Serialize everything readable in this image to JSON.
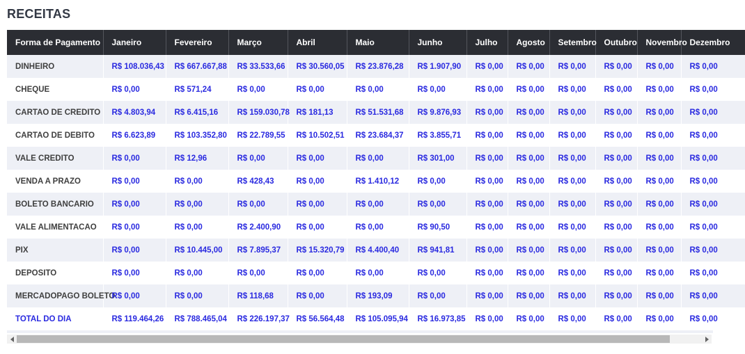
{
  "page": {
    "title": "RECEITAS"
  },
  "table": {
    "columns": [
      "Forma de Pagamento",
      "Janeiro",
      "Fevereiro",
      "Março",
      "Abril",
      "Maio",
      "Junho",
      "Julho",
      "Agosto",
      "Setembro",
      "Outubro",
      "Novembro",
      "Dezembro"
    ],
    "rows": [
      {
        "label": "DINHEIRO",
        "values": [
          "R$ 108.036,43",
          "R$ 667.667,88",
          "R$ 33.533,66",
          "R$ 30.560,05",
          "R$ 23.876,28",
          "R$ 1.907,90",
          "R$ 0,00",
          "R$ 0,00",
          "R$ 0,00",
          "R$ 0,00",
          "R$ 0,00",
          "R$ 0,00"
        ]
      },
      {
        "label": "CHEQUE",
        "values": [
          "R$ 0,00",
          "R$ 571,24",
          "R$ 0,00",
          "R$ 0,00",
          "R$ 0,00",
          "R$ 0,00",
          "R$ 0,00",
          "R$ 0,00",
          "R$ 0,00",
          "R$ 0,00",
          "R$ 0,00",
          "R$ 0,00"
        ]
      },
      {
        "label": "CARTAO DE CREDITO",
        "values": [
          "R$ 4.803,94",
          "R$ 6.415,16",
          "R$ 159.030,78",
          "R$ 181,13",
          "R$ 51.531,68",
          "R$ 9.876,93",
          "R$ 0,00",
          "R$ 0,00",
          "R$ 0,00",
          "R$ 0,00",
          "R$ 0,00",
          "R$ 0,00"
        ]
      },
      {
        "label": "CARTAO DE DEBITO",
        "values": [
          "R$ 6.623,89",
          "R$ 103.352,80",
          "R$ 22.789,55",
          "R$ 10.502,51",
          "R$ 23.684,37",
          "R$ 3.855,71",
          "R$ 0,00",
          "R$ 0,00",
          "R$ 0,00",
          "R$ 0,00",
          "R$ 0,00",
          "R$ 0,00"
        ]
      },
      {
        "label": "VALE CREDITO",
        "values": [
          "R$ 0,00",
          "R$ 12,96",
          "R$ 0,00",
          "R$ 0,00",
          "R$ 0,00",
          "R$ 301,00",
          "R$ 0,00",
          "R$ 0,00",
          "R$ 0,00",
          "R$ 0,00",
          "R$ 0,00",
          "R$ 0,00"
        ]
      },
      {
        "label": "VENDA A PRAZO",
        "values": [
          "R$ 0,00",
          "R$ 0,00",
          "R$ 428,43",
          "R$ 0,00",
          "R$ 1.410,12",
          "R$ 0,00",
          "R$ 0,00",
          "R$ 0,00",
          "R$ 0,00",
          "R$ 0,00",
          "R$ 0,00",
          "R$ 0,00"
        ]
      },
      {
        "label": "BOLETO BANCARIO",
        "values": [
          "R$ 0,00",
          "R$ 0,00",
          "R$ 0,00",
          "R$ 0,00",
          "R$ 0,00",
          "R$ 0,00",
          "R$ 0,00",
          "R$ 0,00",
          "R$ 0,00",
          "R$ 0,00",
          "R$ 0,00",
          "R$ 0,00"
        ]
      },
      {
        "label": "VALE ALIMENTACAO",
        "values": [
          "R$ 0,00",
          "R$ 0,00",
          "R$ 2.400,90",
          "R$ 0,00",
          "R$ 0,00",
          "R$ 90,50",
          "R$ 0,00",
          "R$ 0,00",
          "R$ 0,00",
          "R$ 0,00",
          "R$ 0,00",
          "R$ 0,00"
        ]
      },
      {
        "label": "PIX",
        "values": [
          "R$ 0,00",
          "R$ 10.445,00",
          "R$ 7.895,37",
          "R$ 15.320,79",
          "R$ 4.400,40",
          "R$ 941,81",
          "R$ 0,00",
          "R$ 0,00",
          "R$ 0,00",
          "R$ 0,00",
          "R$ 0,00",
          "R$ 0,00"
        ]
      },
      {
        "label": "DEPOSITO",
        "values": [
          "R$ 0,00",
          "R$ 0,00",
          "R$ 0,00",
          "R$ 0,00",
          "R$ 0,00",
          "R$ 0,00",
          "R$ 0,00",
          "R$ 0,00",
          "R$ 0,00",
          "R$ 0,00",
          "R$ 0,00",
          "R$ 0,00"
        ]
      },
      {
        "label": "MERCADOPAGO BOLETO",
        "values": [
          "R$ 0,00",
          "R$ 0,00",
          "R$ 118,68",
          "R$ 0,00",
          "R$ 193,09",
          "R$ 0,00",
          "R$ 0,00",
          "R$ 0,00",
          "R$ 0,00",
          "R$ 0,00",
          "R$ 0,00",
          "R$ 0,00"
        ]
      },
      {
        "label": "TOTAL DO DIA",
        "values": [
          "R$ 119.464,26",
          "R$ 788.465,04",
          "R$ 226.197,37",
          "R$ 56.564,48",
          "R$ 105.095,94",
          "R$ 16.973,85",
          "R$ 0,00",
          "R$ 0,00",
          "R$ 0,00",
          "R$ 0,00",
          "R$ 0,00",
          "R$ 0,00"
        ],
        "is_total": true
      }
    ]
  },
  "colors": {
    "header_bg": "#2b2d33",
    "header_text": "#ffffff",
    "value_text": "#2a2ae0",
    "label_text": "#3f3f3f",
    "row_alt_bg": "#eef0f6",
    "scrollbar_thumb": "#b8b8b8",
    "scrollbar_track": "#f1f1f1"
  }
}
